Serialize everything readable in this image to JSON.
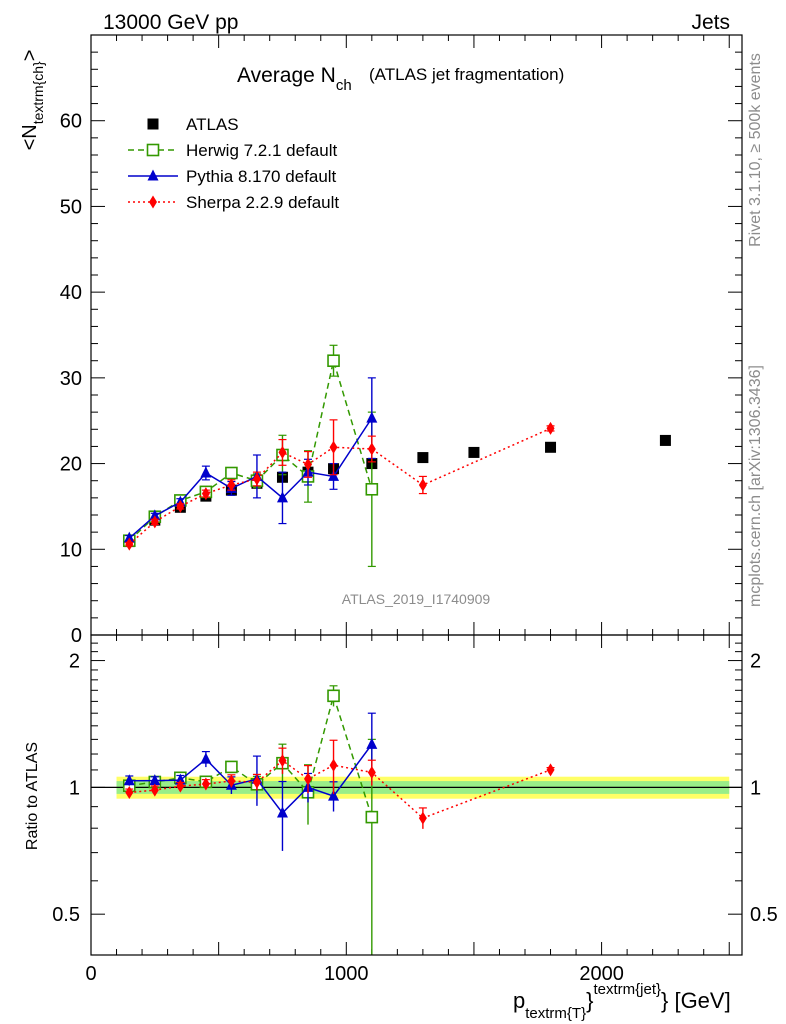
{
  "header": {
    "left": "13000 GeV pp",
    "right": "Jets"
  },
  "side_labels": {
    "rivet": "Rivet 3.1.10, ≥ 500k events",
    "mcplots": "mcplots.cern.ch [arXiv:1306.3436]"
  },
  "chart_data": {
    "type": "scatter",
    "title_main": "Average N",
    "title_sub": "ch",
    "title_extra": "(ATLAS jet fragmentation)",
    "watermark": "ATLAS_2019_I1740909",
    "ylabel_main": {
      "lead": "<N",
      "sub": "textrm{ch}",
      "tail": ">"
    },
    "ylabel_ratio": "Ratio to ATLAS",
    "xlabel": {
      "p": "p",
      "sub": "textrm{T}",
      "brace": "}",
      "sup": "textrm{jet}",
      "unit": "} [GeV]"
    },
    "xlim": [
      0,
      2550
    ],
    "ylim_main": [
      0,
      70
    ],
    "ylim_ratio": [
      0.4,
      2.3
    ],
    "ratio_log_scale": true,
    "x_ticks": [
      0,
      1000,
      2000
    ],
    "x_ticklabels": [
      "0",
      "1000",
      "2000"
    ],
    "y_ticks_main": [
      0,
      10,
      20,
      30,
      40,
      50,
      60
    ],
    "y_ticklabels_main": [
      "0",
      "10",
      "20",
      "30",
      "40",
      "50",
      "60"
    ],
    "y_ticks_ratio": [
      0.5,
      1,
      2
    ],
    "y_ticklabels_ratio": [
      "0.5",
      "1",
      "2"
    ],
    "legend_position": "top-left",
    "series": [
      {
        "name": "ATLAS",
        "color": "#000000",
        "marker": "square",
        "line": "none",
        "x": [
          150,
          250,
          350,
          450,
          550,
          650,
          750,
          850,
          950,
          1100,
          1300,
          1500,
          1800,
          2250
        ],
        "y": [
          10.9,
          13.4,
          14.9,
          16.2,
          16.9,
          17.7,
          18.4,
          19.0,
          19.4,
          20.0,
          20.7,
          21.3,
          21.9,
          22.7
        ]
      },
      {
        "name": "Herwig 7.2.1 default",
        "color": "#339900",
        "marker": "open-square",
        "line": "dashed",
        "x": [
          150,
          250,
          350,
          450,
          550,
          650,
          750,
          850,
          950,
          1100
        ],
        "y": [
          11.0,
          13.8,
          15.7,
          16.7,
          18.9,
          18.0,
          21.0,
          18.5,
          32.0,
          17.0
        ],
        "yerr": [
          0.3,
          0.3,
          0.3,
          0.5,
          0.4,
          0.8,
          2.3,
          3.0,
          1.8,
          9.0
        ]
      },
      {
        "name": "Pythia 8.170 default",
        "color": "#0000cc",
        "marker": "triangle",
        "line": "solid",
        "x": [
          150,
          250,
          350,
          450,
          550,
          650,
          750,
          850,
          950,
          1100
        ],
        "y": [
          11.3,
          13.9,
          15.5,
          18.9,
          17.1,
          18.5,
          16.0,
          19.0,
          18.5,
          25.3
        ],
        "yerr": [
          0.3,
          0.3,
          0.4,
          0.8,
          0.8,
          2.5,
          3.0,
          1.5,
          1.5,
          4.7
        ]
      },
      {
        "name": "Sherpa 2.2.9 default",
        "color": "#ff0000",
        "marker": "diamond",
        "line": "dotted",
        "x": [
          150,
          250,
          350,
          450,
          550,
          650,
          750,
          850,
          950,
          1100,
          1300,
          1800
        ],
        "y": [
          10.6,
          13.2,
          15.0,
          16.5,
          17.5,
          18.2,
          21.3,
          19.9,
          21.9,
          21.7,
          17.5,
          24.1
        ],
        "yerr": [
          0.2,
          0.3,
          0.3,
          0.4,
          0.6,
          0.8,
          1.5,
          1.5,
          3.2,
          1.5,
          1.0,
          0.3
        ]
      }
    ]
  }
}
